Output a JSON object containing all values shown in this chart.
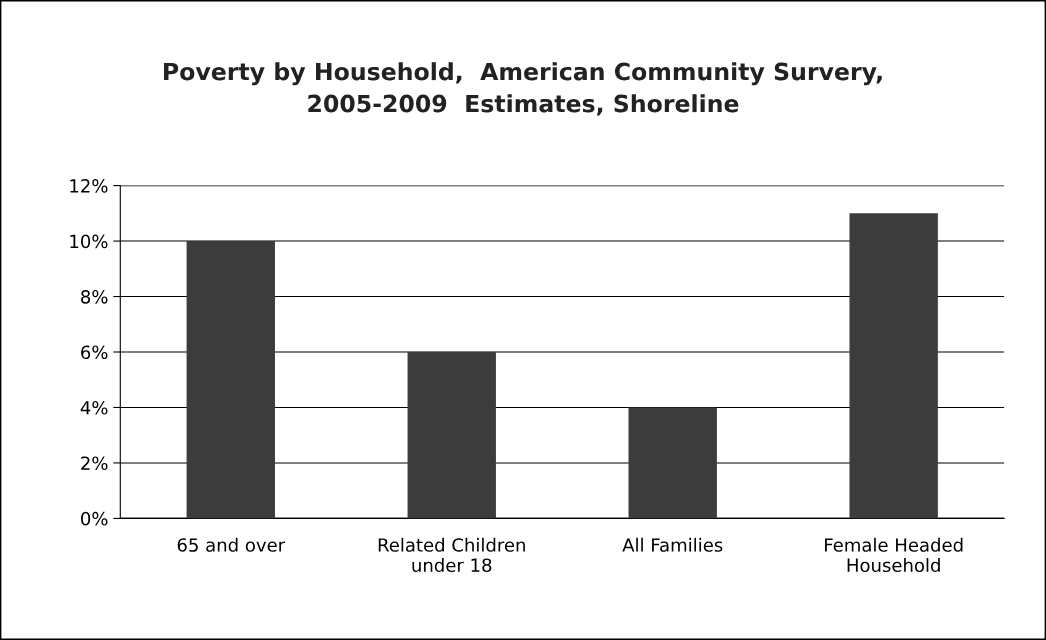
{
  "chart_data": {
    "type": "bar",
    "title": "Poverty by Household,  American Community Survery,\n2005-2009  Estimates, Shoreline",
    "categories": [
      "65 and over",
      "Related Children\nunder 18",
      "All Families",
      "Female Headed\nHousehold"
    ],
    "values": [
      10,
      6,
      4,
      11
    ],
    "color": "#3c3c3c",
    "ylim": [
      0,
      12
    ],
    "yticks": [
      {
        "value": 0,
        "label": "0%"
      },
      {
        "value": 2,
        "label": "2%"
      },
      {
        "value": 4,
        "label": "4%"
      },
      {
        "value": 6,
        "label": "6%"
      },
      {
        "value": 8,
        "label": "8%"
      },
      {
        "value": 10,
        "label": "10%"
      },
      {
        "value": 12,
        "label": "12%"
      }
    ],
    "grid": "y",
    "legend": false
  }
}
